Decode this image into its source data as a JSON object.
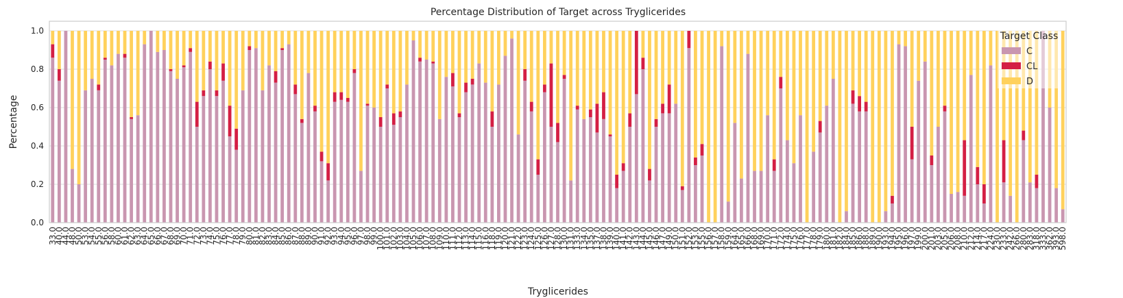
{
  "chart_data": {
    "type": "stacked_bar",
    "title": "Percentage Distribution of Target across Tryglicerides",
    "xlabel": "Tryglicerides",
    "ylabel": "Percentage",
    "legend_title": "Target Class",
    "legend_loc": "upper right",
    "grid": true,
    "ylim": [
      0,
      1.05
    ],
    "yticks": [
      {
        "value": 0,
        "label": "0.0"
      },
      0.2,
      0.4,
      0.6,
      0.8,
      {
        "value": 1,
        "label": "1.0"
      }
    ],
    "categories": [
      "33.0",
      "40.0",
      "44.0",
      "48.0",
      "50.0",
      "53.0",
      "54.0",
      "55.0",
      "56.0",
      "58.0",
      "60.0",
      "61.0",
      "62.0",
      "63.0",
      "64.0",
      "65.0",
      "66.0",
      "67.0",
      "68.0",
      "69.0",
      "70.0",
      "71.0",
      "72.0",
      "73.0",
      "74.0",
      "75.0",
      "76.0",
      "77.0",
      "78.0",
      "79.0",
      "80.0",
      "81.0",
      "82.0",
      "83.0",
      "84.0",
      "85.0",
      "86.0",
      "87.0",
      "88.0",
      "89.0",
      "90.0",
      "91.0",
      "92.0",
      "93.0",
      "94.0",
      "95.0",
      "96.0",
      "97.0",
      "98.0",
      "99.0",
      "100.0",
      "101.0",
      "102.0",
      "103.0",
      "104.0",
      "105.0",
      "106.0",
      "107.0",
      "108.0",
      "109.0",
      "110.0",
      "111.0",
      "112.0",
      "113.0",
      "114.0",
      "115.0",
      "116.0",
      "118.0",
      "119.0",
      "120.0",
      "121.0",
      "122.0",
      "123.0",
      "124.0",
      "125.0",
      "126.0",
      "127.0",
      "128.0",
      "130.0",
      "131.0",
      "133.0",
      "134.0",
      "135.0",
      "137.0",
      "138.0",
      "139.0",
      "140.0",
      "141.0",
      "142.0",
      "143.0",
      "144.0",
      "145.0",
      "146.0",
      "147.0",
      "149.0",
      "150.0",
      "151.0",
      "152.0",
      "153.0",
      "155.0",
      "156.0",
      "157.0",
      "158.0",
      "159.0",
      "164.0",
      "165.0",
      "166.0",
      "168.0",
      "169.0",
      "170.0",
      "171.0",
      "172.0",
      "174.0",
      "175.0",
      "176.0",
      "177.0",
      "178.0",
      "179.0",
      "180.0",
      "181.0",
      "182.0",
      "184.0",
      "185.0",
      "186.0",
      "188.0",
      "189.0",
      "190.0",
      "193.0",
      "194.0",
      "195.0",
      "196.0",
      "197.0",
      "199.0",
      "200.0",
      "201.0",
      "203.0",
      "205.0",
      "206.0",
      "208.0",
      "210.0",
      "212.0",
      "214.0",
      "217.0",
      "224.0",
      "230.0",
      "233.0",
      "242.0",
      "266.0",
      "280.0",
      "283.0",
      "318.0",
      "333.0",
      "362.0",
      "393.0",
      "598.0"
    ],
    "series": [
      {
        "name": "C",
        "color": "#c996b0",
        "values": [
          0.86,
          0.74,
          1.0,
          0.28,
          0.2,
          0.69,
          0.75,
          0.69,
          0.85,
          0.82,
          0.88,
          0.86,
          0.54,
          0.56,
          0.93,
          1.0,
          0.89,
          0.9,
          0.79,
          0.75,
          0.81,
          0.89,
          0.5,
          0.66,
          0.8,
          0.66,
          0.74,
          0.45,
          0.38,
          0.69,
          0.9,
          0.91,
          0.69,
          0.82,
          0.73,
          0.9,
          0.93,
          0.67,
          0.52,
          0.78,
          0.58,
          0.32,
          0.22,
          0.63,
          0.64,
          0.63,
          0.78,
          0.27,
          0.61,
          0.6,
          0.5,
          0.7,
          0.51,
          0.55,
          0.72,
          0.95,
          0.84,
          0.85,
          0.83,
          0.54,
          0.76,
          0.71,
          0.55,
          0.68,
          0.72,
          0.83,
          0.73,
          0.5,
          0.72,
          0.87,
          0.96,
          0.46,
          0.74,
          0.58,
          0.25,
          0.68,
          0.5,
          0.42,
          0.75,
          0.22,
          0.59,
          0.54,
          0.55,
          0.47,
          0.54,
          0.45,
          0.18,
          0.27,
          0.5,
          0.67,
          0.8,
          0.22,
          0.5,
          0.57,
          0.57,
          0.62,
          0.17,
          0.91,
          0.3,
          0.35,
          0,
          0,
          0.92,
          0.11,
          0.52,
          0.23,
          0.88,
          0.27,
          0.27,
          0.56,
          0.27,
          0.7,
          0.43,
          0.31,
          0.56,
          0,
          0.37,
          0.47,
          0.61,
          0.75,
          0,
          0.06,
          0.62,
          0.58,
          0.58,
          0,
          0,
          0.06,
          0.1,
          0.93,
          0.92,
          0.33,
          0.74,
          0.84,
          0.3,
          0.5,
          0.58,
          0.15,
          0.16,
          0.14,
          0.77,
          0.2,
          0.1,
          0.82,
          0,
          0.21,
          0.14,
          0,
          0.43,
          0.21,
          0.18,
          1.0,
          0.6,
          0.18,
          0.07
        ]
      },
      {
        "name": "CL",
        "color": "#d41f44",
        "values": [
          0.07,
          0.06,
          0,
          0,
          0,
          0,
          0,
          0.03,
          0.01,
          0,
          0,
          0.02,
          0.01,
          0,
          0,
          0,
          0,
          0,
          0.01,
          0,
          0.01,
          0.02,
          0.13,
          0.03,
          0.04,
          0.03,
          0.09,
          0.16,
          0.11,
          0,
          0.02,
          0,
          0,
          0,
          0.06,
          0.01,
          0,
          0.05,
          0.02,
          0,
          0.03,
          0.05,
          0.09,
          0.05,
          0.04,
          0.02,
          0.02,
          0,
          0.01,
          0,
          0.05,
          0.02,
          0.06,
          0.03,
          0,
          0,
          0.02,
          0,
          0.01,
          0,
          0,
          0.07,
          0.02,
          0.05,
          0.03,
          0,
          0,
          0.08,
          0,
          0,
          0,
          0,
          0.06,
          0.05,
          0.08,
          0.04,
          0.33,
          0.1,
          0.02,
          0,
          0.02,
          0,
          0.04,
          0.15,
          0.14,
          0.01,
          0.07,
          0.04,
          0.07,
          0.33,
          0.06,
          0.06,
          0.04,
          0.05,
          0.15,
          0,
          0.02,
          0.09,
          0.04,
          0.06,
          0,
          0,
          0,
          0,
          0,
          0,
          0,
          0,
          0,
          0,
          0.06,
          0.06,
          0,
          0,
          0,
          0,
          0,
          0.06,
          0,
          0,
          0,
          0,
          0.07,
          0.08,
          0.05,
          0,
          0,
          0,
          0.04,
          0,
          0,
          0.17,
          0,
          0,
          0.05,
          0,
          0.03,
          0,
          0,
          0.29,
          0,
          0.09,
          0.1,
          0,
          0,
          0.22,
          0,
          0,
          0.05,
          0,
          0.07,
          0,
          0,
          0,
          0
        ]
      },
      {
        "name": "D",
        "color": "#ffd15c",
        "values": [
          0.07,
          0.2,
          0,
          0.72,
          0.8,
          0.31,
          0.25,
          0.28,
          0.14,
          0.18,
          0.12,
          0.12,
          0.45,
          0.44,
          0.07,
          0,
          0.11,
          0.1,
          0.2,
          0.25,
          0.18,
          0.09,
          0.37,
          0.31,
          0.16,
          0.31,
          0.17,
          0.39,
          0.51,
          0.31,
          0.08,
          0.09,
          0.31,
          0.18,
          0.21,
          0.09,
          0.07,
          0.28,
          0.46,
          0.22,
          0.39,
          0.63,
          0.69,
          0.32,
          0.32,
          0.35,
          0.2,
          0.73,
          0.38,
          0.4,
          0.45,
          0.28,
          0.43,
          0.42,
          0.28,
          0.05,
          0.14,
          0.15,
          0.16,
          0.46,
          0.24,
          0.22,
          0.43,
          0.27,
          0.25,
          0.17,
          0.27,
          0.42,
          0.28,
          0.13,
          0.04,
          0.54,
          0.2,
          0.37,
          0.67,
          0.28,
          0.17,
          0.48,
          0.23,
          0.78,
          0.39,
          0.46,
          0.41,
          0.38,
          0.32,
          0.54,
          0.75,
          0.69,
          0.43,
          0,
          0.14,
          0.72,
          0.46,
          0.38,
          0.28,
          0.38,
          0.81,
          0,
          0.66,
          0.59,
          1,
          1,
          0.08,
          0.89,
          0.48,
          0.77,
          0.12,
          0.73,
          0.73,
          0.44,
          0.67,
          0.24,
          0.57,
          0.69,
          0.44,
          1,
          0.63,
          0.47,
          0.39,
          0.25,
          1,
          0.94,
          0.31,
          0.34,
          0.37,
          1,
          1,
          0.94,
          0.86,
          0.07,
          0.08,
          0.5,
          0.26,
          0.16,
          0.65,
          0.5,
          0.39,
          0.85,
          0.84,
          0.57,
          0.23,
          0.71,
          0.8,
          0.18,
          1,
          0.57,
          0.86,
          1,
          0.52,
          0.79,
          0.75,
          0,
          0.4,
          0.82,
          0.93
        ]
      }
    ]
  }
}
